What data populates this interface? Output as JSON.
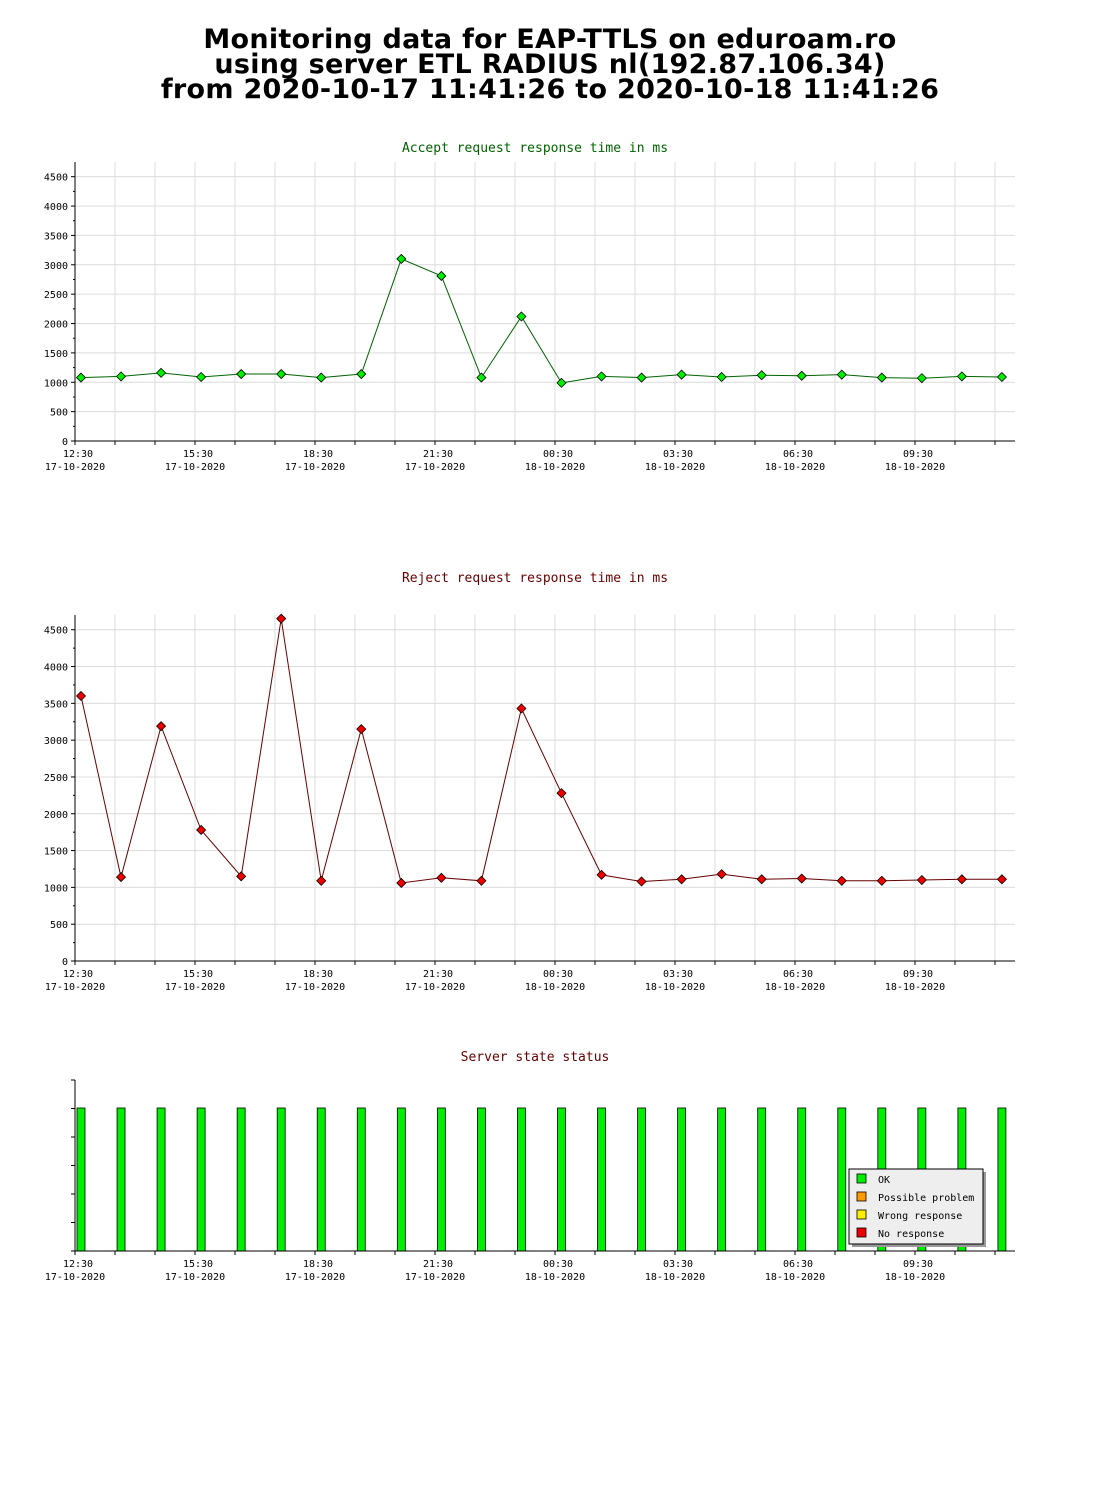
{
  "header": {
    "line1": "Monitoring data for EAP-TTLS on eduroam.ro",
    "line2": "using server ETL RADIUS nl(192.87.106.34)",
    "line3": "from 2020-10-17 11:41:26 to 2020-10-18 11:41:26"
  },
  "colors": {
    "accept_title": "#006400",
    "reject_title": "#660000",
    "status_title": "#660000",
    "ok": "#00ee00",
    "possible_problem": "#ff9900",
    "wrong_response": "#ffee00",
    "no_response": "#ee0000"
  },
  "x_ticks": [
    {
      "time": "12:30",
      "date": "17-10-2020"
    },
    {
      "time": "15:30",
      "date": "17-10-2020"
    },
    {
      "time": "18:30",
      "date": "17-10-2020"
    },
    {
      "time": "21:30",
      "date": "17-10-2020"
    },
    {
      "time": "00:30",
      "date": "18-10-2020"
    },
    {
      "time": "03:30",
      "date": "18-10-2020"
    },
    {
      "time": "06:30",
      "date": "18-10-2020"
    },
    {
      "time": "09:30",
      "date": "18-10-2020"
    }
  ],
  "chart_data": [
    {
      "type": "line",
      "title": "Accept request response time in ms",
      "y_ticks": [
        0,
        500,
        1000,
        1500,
        2000,
        2500,
        3000,
        3500,
        4000,
        4500
      ],
      "ylim": [
        0,
        4750
      ],
      "grid": true,
      "marker_color": "#00ee00",
      "line_color": "#006400",
      "values": [
        1080,
        1100,
        1160,
        1090,
        1140,
        1140,
        1080,
        1140,
        3100,
        2810,
        1080,
        2120,
        990,
        1100,
        1080,
        1130,
        1090,
        1120,
        1110,
        1130,
        1080,
        1070,
        1100,
        1090
      ]
    },
    {
      "type": "line",
      "title": "Reject request response time in ms",
      "y_ticks": [
        0,
        500,
        1000,
        1500,
        2000,
        2500,
        3000,
        3500,
        4000,
        4500
      ],
      "ylim": [
        0,
        4700
      ],
      "grid": true,
      "marker_color": "#ee0000",
      "line_color": "#660000",
      "values": [
        3600,
        1140,
        3190,
        1780,
        1150,
        4650,
        1090,
        3150,
        1060,
        1130,
        1090,
        3430,
        2280,
        1170,
        1080,
        1110,
        1180,
        1110,
        1120,
        1090,
        1090,
        1100,
        1110,
        1110
      ]
    },
    {
      "type": "bar",
      "title": "Server state status",
      "grid": false,
      "legend_position": "bottom-right",
      "values": [
        "OK",
        "OK",
        "OK",
        "OK",
        "OK",
        "OK",
        "OK",
        "OK",
        "OK",
        "OK",
        "OK",
        "OK",
        "OK",
        "OK",
        "OK",
        "OK",
        "OK",
        "OK",
        "OK",
        "OK",
        "OK",
        "OK",
        "OK",
        "OK"
      ],
      "legend": [
        {
          "label": "OK",
          "color": "#00ee00"
        },
        {
          "label": "Possible problem",
          "color": "#ff9900"
        },
        {
          "label": "Wrong response",
          "color": "#ffee00"
        },
        {
          "label": "No response",
          "color": "#ee0000"
        }
      ]
    }
  ]
}
